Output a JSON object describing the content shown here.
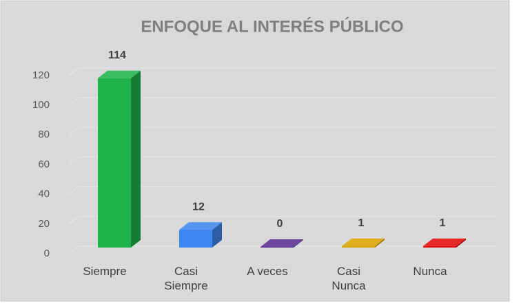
{
  "chart_data": {
    "type": "bar3d",
    "title": "ENFOQUE AL INTERÉS PÚBLICO",
    "categories": [
      "Siempre",
      "Casi Siempre",
      "A veces",
      "Casi Nunca",
      "Nunca"
    ],
    "values": [
      114,
      12,
      0,
      1,
      1
    ],
    "colors": [
      "#1fb34a",
      "#3f86f0",
      "#5a2d91",
      "#d9a400",
      "#e00a0a"
    ],
    "ylim": [
      0,
      120
    ],
    "yticks": [
      0,
      20,
      40,
      60,
      80,
      100,
      120
    ],
    "grid": true
  }
}
